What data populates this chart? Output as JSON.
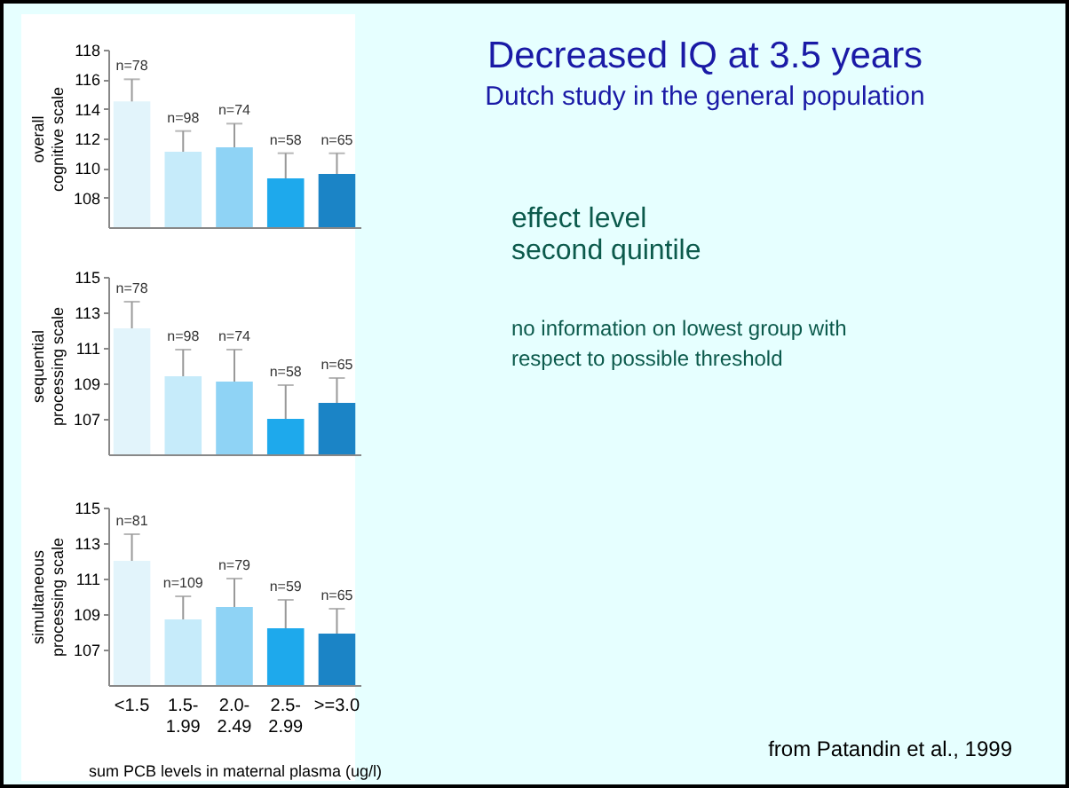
{
  "chart_data": [
    {
      "type": "bar",
      "ylabel": "overall cognitive scale",
      "categories": [
        "<1.5",
        "1.5-1.99",
        "2.0-2.49",
        "2.5-2.99",
        ">=3.0"
      ],
      "values": [
        114.5,
        111.1,
        111.4,
        109.3,
        109.6
      ],
      "errors": [
        [
          114.5,
          116
        ],
        [
          111.1,
          112.5
        ],
        [
          111.4,
          113
        ],
        [
          109.3,
          111
        ],
        [
          109.6,
          111
        ]
      ],
      "colors": [
        "#e2f4fb",
        "#c6ebfa",
        "#8fd3f5",
        "#1ea9ec",
        "#1b84c6"
      ],
      "ylim": [
        106,
        118
      ],
      "yticks": [
        108,
        110,
        112,
        114,
        116,
        118
      ],
      "grid": false,
      "tick_labels": "y",
      "annotations": [
        {
          "text": "n=78",
          "x": "<1.5",
          "y": 116
        },
        {
          "text": "n=98",
          "x": "1.5-1.99",
          "y": 112.5
        },
        {
          "text": "n=74",
          "x": "2.0-2.49",
          "y": 113
        },
        {
          "text": "n=58",
          "x": "2.5-2.99",
          "y": 111
        },
        {
          "text": "n=65",
          "x": ">=3.0",
          "y": 111
        }
      ]
    },
    {
      "type": "bar",
      "ylabel": "sequential processing scale",
      "categories": [
        "<1.5",
        "1.5-1.99",
        "2.0-2.49",
        "2.5-2.99",
        ">=3.0"
      ],
      "values": [
        112.1,
        109.4,
        109.1,
        107,
        107.9
      ],
      "errors": [
        [
          112.1,
          113.6
        ],
        [
          109.4,
          110.9
        ],
        [
          109.1,
          110.9
        ],
        [
          107,
          108.9
        ],
        [
          107.9,
          109.3
        ]
      ],
      "colors": [
        "#e2f4fb",
        "#c6ebfa",
        "#8fd3f5",
        "#1ea9ec",
        "#1b84c6"
      ],
      "ylim": [
        105,
        115
      ],
      "yticks": [
        107,
        109,
        111,
        113,
        115
      ],
      "grid": false,
      "tick_labels": "y",
      "annotations": [
        {
          "text": "n=78",
          "x": "<1.5",
          "y": 113.6
        },
        {
          "text": "n=98",
          "x": "1.5-1.99",
          "y": 110.9
        },
        {
          "text": "n=74",
          "x": "2.0-2.49",
          "y": 110.9
        },
        {
          "text": "n=58",
          "x": "2.5-2.99",
          "y": 108.9
        },
        {
          "text": "n=65",
          "x": ">=3.0",
          "y": 109.3
        }
      ]
    },
    {
      "type": "bar",
      "ylabel": "simultaneous processing scale",
      "xlabel": "sum PCB levels in maternal plasma (ug/l)",
      "categories": [
        "<1.5",
        "1.5-1.99",
        "2.0-2.49",
        "2.5-2.99",
        ">=3.0"
      ],
      "values": [
        112,
        108.7,
        109.4,
        108.2,
        107.9
      ],
      "errors": [
        [
          112,
          113.5
        ],
        [
          108.7,
          110
        ],
        [
          109.4,
          111
        ],
        [
          108.2,
          109.8
        ],
        [
          107.9,
          109.3
        ]
      ],
      "colors": [
        "#e2f4fb",
        "#c6ebfa",
        "#8fd3f5",
        "#1ea9ec",
        "#1b84c6"
      ],
      "ylim": [
        105,
        115
      ],
      "yticks": [
        107,
        109,
        111,
        113,
        115
      ],
      "grid": false,
      "annotations": [
        {
          "text": "n=81",
          "x": "<1.5",
          "y": 113.5
        },
        {
          "text": "n=109",
          "x": "1.5-1.99",
          "y": 110
        },
        {
          "text": "n=79",
          "x": "2.0-2.49",
          "y": 111
        },
        {
          "text": "n=59",
          "x": "2.5-2.99",
          "y": 109.8
        },
        {
          "text": "n=65",
          "x": ">=3.0",
          "y": 109.3
        }
      ]
    },
    {
      "type": "other",
      "title": "Decreased IQ at 3.5 years",
      "subtitle": "Dutch study in the general population",
      "annotations": [
        "effect level",
        "second quintile",
        "no information on lowest group with respect to possible threshold",
        "from Patandin et al., 1999"
      ]
    }
  ]
}
